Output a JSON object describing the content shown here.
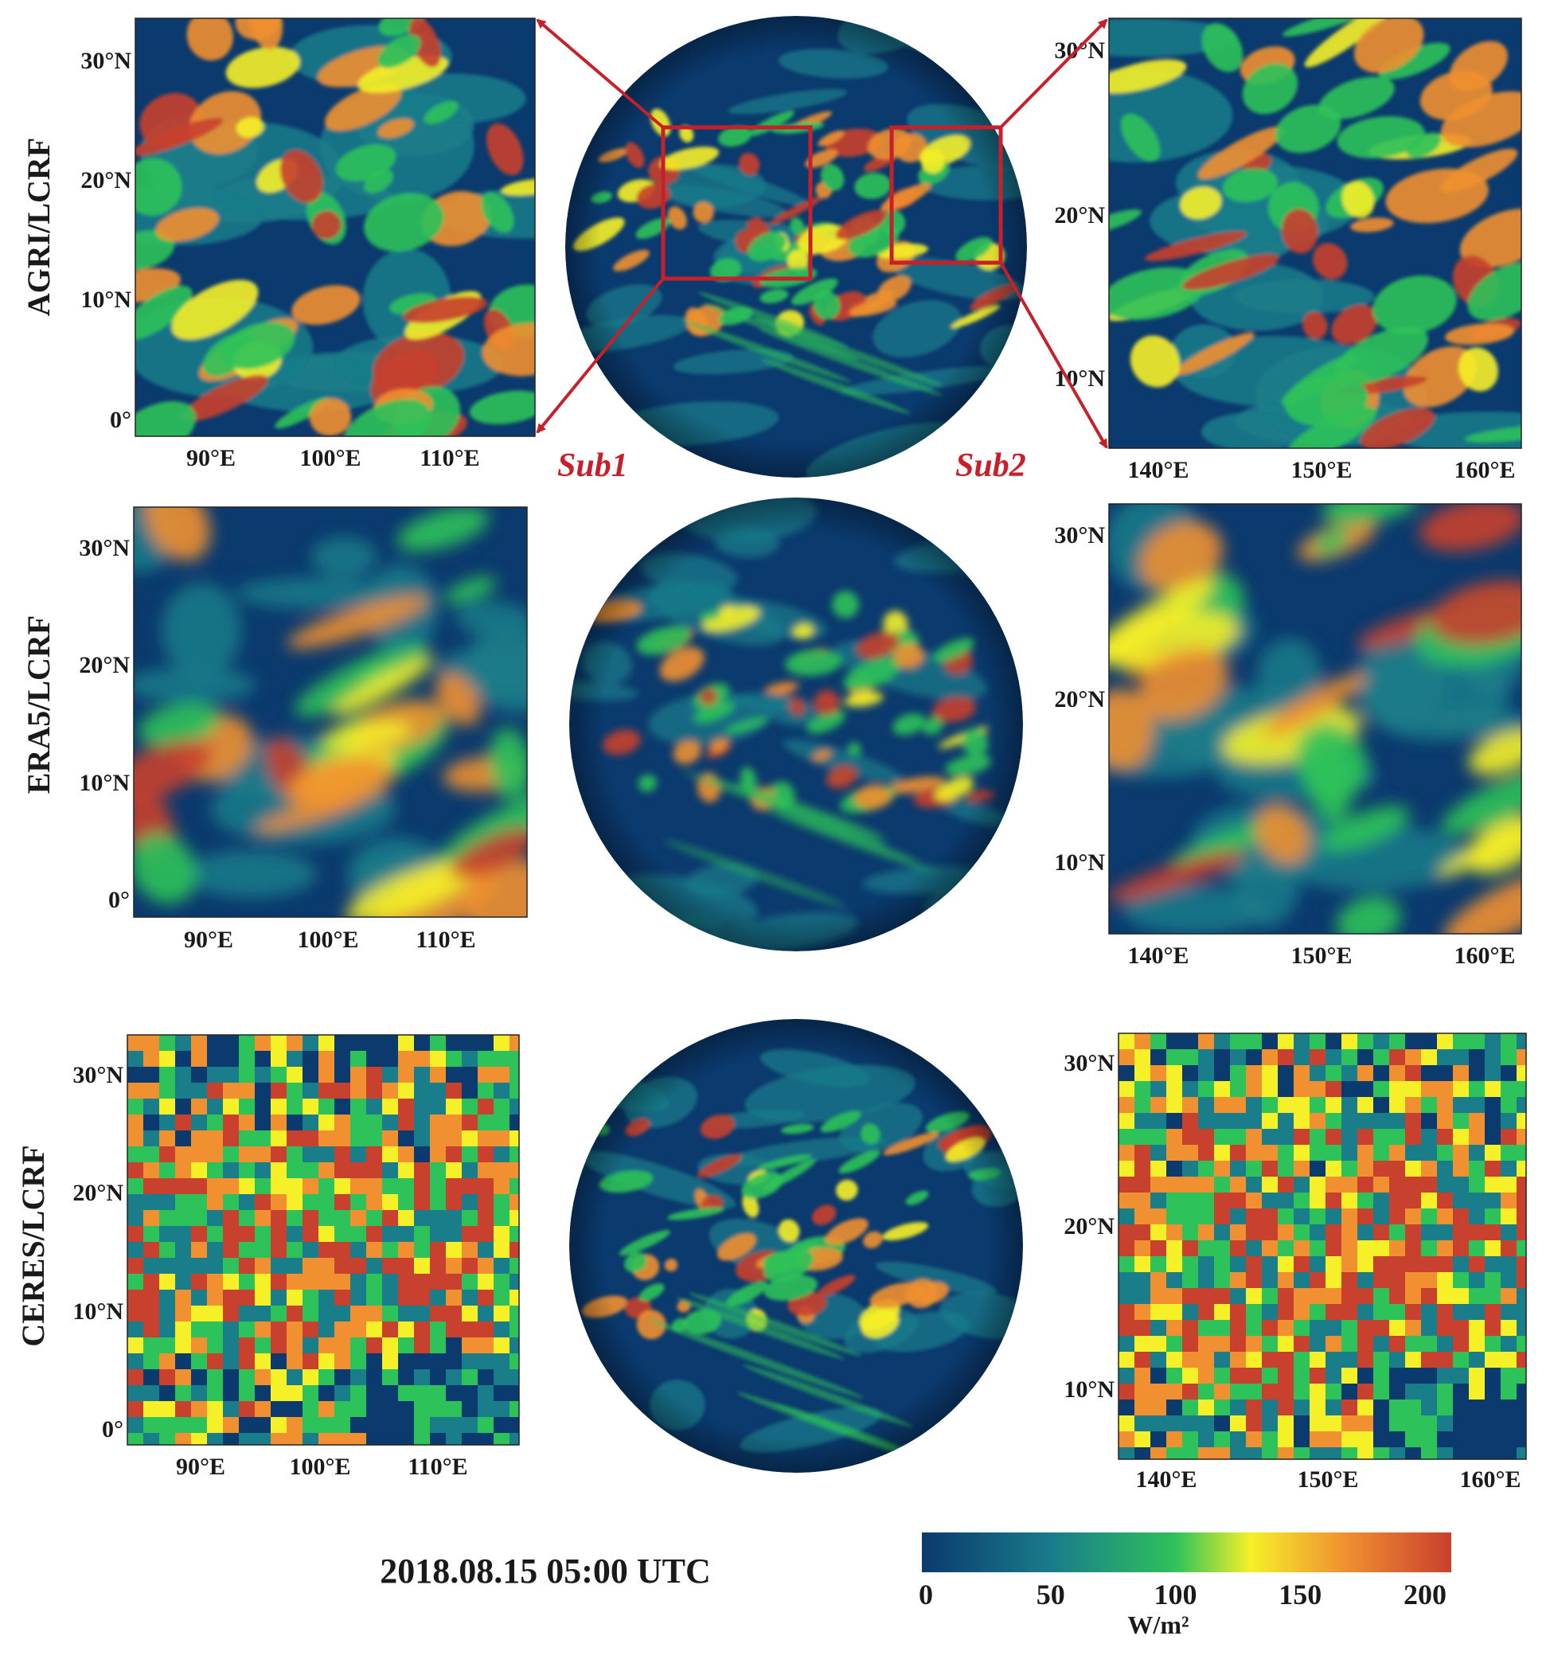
{
  "rows": [
    {
      "label": "AGRI/LCRF"
    },
    {
      "label": "ERA5/LCRF"
    },
    {
      "label": "CERES/LCRF"
    }
  ],
  "sub1": {
    "name": "Sub1",
    "lat_ticks": [
      "30°N",
      "20°N",
      "10°N",
      "0°"
    ],
    "lon_ticks": [
      "90°E",
      "100°E",
      "110°E"
    ]
  },
  "sub2": {
    "name": "Sub2",
    "lat_ticks": [
      "30°N",
      "20°N",
      "10°N"
    ],
    "lon_ticks": [
      "140°E",
      "150°E",
      "160°E"
    ]
  },
  "timestamp": "2018.08.15 05:00 UTC",
  "colorbar": {
    "ticks": [
      "0",
      "50",
      "100",
      "150",
      "200"
    ],
    "unit": "W/m²",
    "colors": [
      "#0b3a6e",
      "#1a7d8a",
      "#2ec25a",
      "#f5f028",
      "#f09030",
      "#c8402e"
    ]
  },
  "accent_color": "#c8202a"
}
